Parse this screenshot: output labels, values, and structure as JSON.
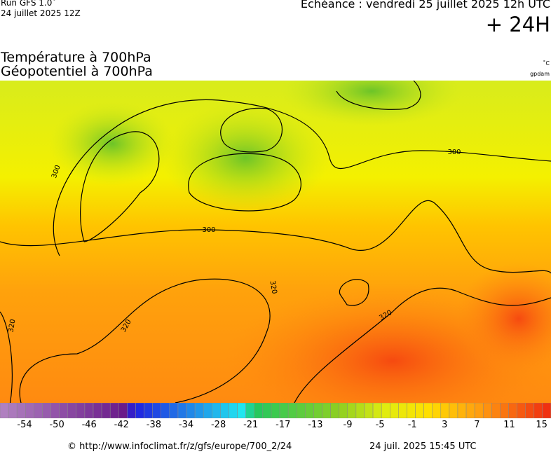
{
  "header": {
    "run": "Run GFS 1.0˚",
    "date": "24 juillet 2025 12Z",
    "echeance": "Echéance : vendredi 25 juillet 2025 12h UTC",
    "lead": "+ 24H",
    "title1": "Température à 700hPa",
    "title2": "Géopotentiel à 700hPa",
    "unit1": "˚C",
    "unit2": "gpdam"
  },
  "map": {
    "contour_labels": [
      "300",
      "300",
      "300",
      "320",
      "320",
      "320",
      "320"
    ]
  },
  "colorbar": {
    "labels": [
      -54,
      -50,
      -46,
      -42,
      -38,
      -34,
      -28,
      -21,
      -17,
      -13,
      -9,
      -5,
      -1,
      3,
      7,
      11,
      15
    ]
  },
  "footer": {
    "credit": "© http://www.infoclimat.fr/z/gfs/europe/700_2/24",
    "timestamp": "24 juil. 2025 15:45 UTC"
  }
}
